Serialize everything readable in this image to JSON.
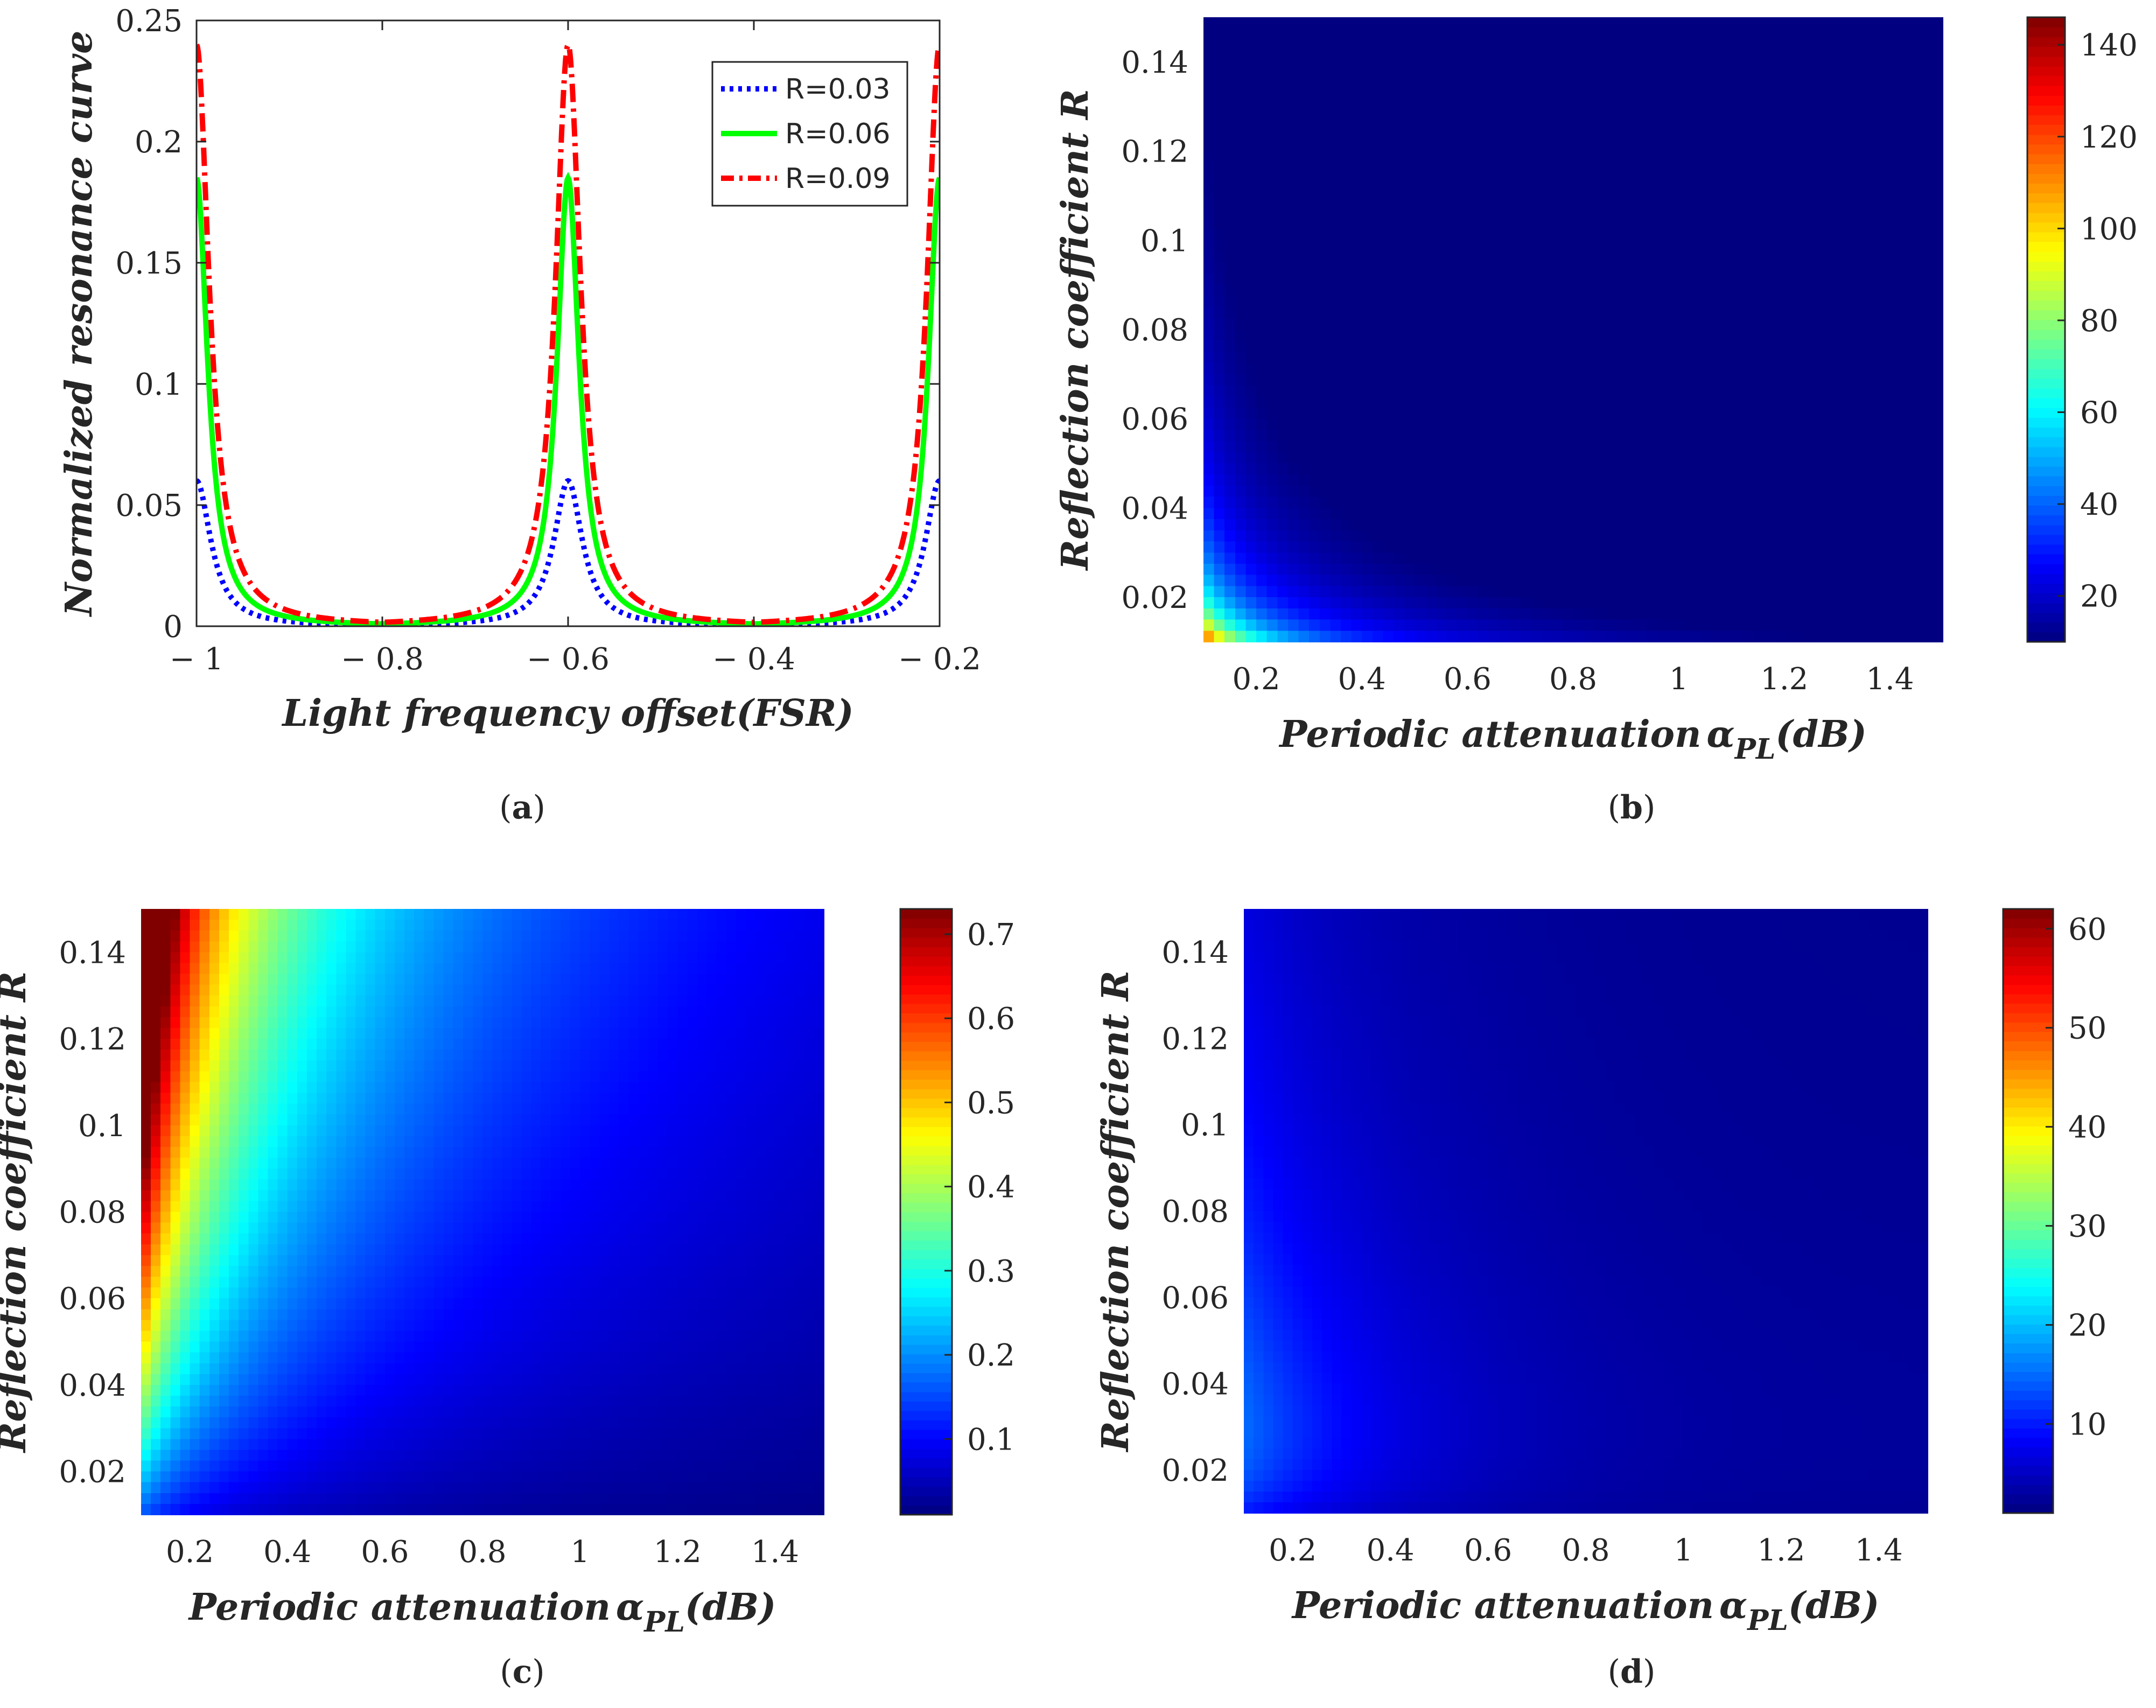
{
  "figure_kind": "four-panel scientific figure",
  "chart_data": [
    {
      "id": "a",
      "type": "line",
      "panel_label": "a",
      "xlabel": "Light frequency offset(FSR)",
      "ylabel": "Normalized resonance curve",
      "xlim": [
        -1,
        -0.2
      ],
      "ylim": [
        0,
        0.25
      ],
      "xticks": [
        -1,
        -0.8,
        -0.6,
        -0.4,
        -0.2
      ],
      "xtick_labels": [
        "− 1",
        "− 0.8",
        "− 0.6",
        "− 0.4",
        "− 0.2"
      ],
      "yticks": [
        0,
        0.05,
        0.1,
        0.15,
        0.2,
        0.25
      ],
      "ytick_labels": [
        "0",
        "0.05",
        "0.1",
        "0.15",
        "0.2",
        "0.25"
      ],
      "legend_position": "top-right",
      "resonance_centers": [
        -1,
        -0.6,
        -0.2
      ],
      "series": [
        {
          "name": "R=0.03",
          "color": "#0000ff",
          "style": "dotted",
          "peak": 0.06,
          "base": 0.0008
        },
        {
          "name": "R=0.06",
          "color": "#00ff00",
          "style": "solid",
          "peak": 0.185,
          "base": 0.0015
        },
        {
          "name": "R=0.09",
          "color": "#ff0000",
          "style": "dashdot",
          "peak": 0.24,
          "base": 0.0025
        }
      ]
    },
    {
      "id": "b",
      "type": "heatmap",
      "panel_label": "b",
      "xlabel": "Periodic attenuation",
      "xlabel_symbol": "α",
      "xlabel_subscript": "PL",
      "xlabel_unit": "(dB)",
      "ylabel": "Reflection coefficient R",
      "xlim": [
        0.1,
        1.5
      ],
      "ylim": [
        0.01,
        0.15
      ],
      "xticks": [
        0.2,
        0.4,
        0.6,
        0.8,
        1,
        1.2,
        1.4
      ],
      "xtick_labels": [
        "0.2",
        "0.4",
        "0.6",
        "0.8",
        "1",
        "1.2",
        "1.4"
      ],
      "yticks": [
        0.02,
        0.04,
        0.06,
        0.08,
        0.1,
        0.12,
        0.14
      ],
      "ytick_labels": [
        "0.02",
        "0.04",
        "0.06",
        "0.08",
        "0.1",
        "0.12",
        "0.14"
      ],
      "colorbar_range": [
        10,
        146
      ],
      "colorbar_ticks": [
        20,
        40,
        60,
        80,
        100,
        120,
        140
      ],
      "colorbar_tick_labels": [
        "20",
        "40",
        "60",
        "80",
        "100",
        "120",
        "140"
      ],
      "colormap": "jet",
      "field": "inverse-product",
      "hot_corner": "bottom-left"
    },
    {
      "id": "c",
      "type": "heatmap",
      "panel_label": "c",
      "xlabel": "Periodic attenuation",
      "xlabel_symbol": "α",
      "xlabel_subscript": "PL",
      "xlabel_unit": "(dB)",
      "ylabel": "Reflection coefficient R",
      "xlim": [
        0.1,
        1.5
      ],
      "ylim": [
        0.01,
        0.15
      ],
      "xticks": [
        0.2,
        0.4,
        0.6,
        0.8,
        1,
        1.2,
        1.4
      ],
      "xtick_labels": [
        "0.2",
        "0.4",
        "0.6",
        "0.8",
        "1",
        "1.2",
        "1.4"
      ],
      "yticks": [
        0.02,
        0.04,
        0.06,
        0.08,
        0.1,
        0.12,
        0.14
      ],
      "ytick_labels": [
        "0.02",
        "0.04",
        "0.06",
        "0.08",
        "0.1",
        "0.12",
        "0.14"
      ],
      "colorbar_range": [
        0.01,
        0.73
      ],
      "colorbar_ticks": [
        0.1,
        0.2,
        0.3,
        0.4,
        0.5,
        0.6,
        0.7
      ],
      "colorbar_tick_labels": [
        "0.1",
        "0.2",
        "0.3",
        "0.4",
        "0.5",
        "0.6",
        "0.7"
      ],
      "colormap": "jet",
      "field": "ratio",
      "hot_corner": "top-left"
    },
    {
      "id": "d",
      "type": "heatmap",
      "panel_label": "d",
      "xlabel": "Periodic attenuation",
      "xlabel_symbol": "α",
      "xlabel_subscript": "PL",
      "xlabel_unit": "(dB)",
      "ylabel": "Reflection coefficient R",
      "xlim": [
        0.1,
        1.5
      ],
      "ylim": [
        0.01,
        0.15
      ],
      "xticks": [
        0.2,
        0.4,
        0.6,
        0.8,
        1,
        1.2,
        1.4
      ],
      "xtick_labels": [
        "0.2",
        "0.4",
        "0.6",
        "0.8",
        "1",
        "1.2",
        "1.4"
      ],
      "yticks": [
        0.02,
        0.04,
        0.06,
        0.08,
        0.1,
        0.12,
        0.14
      ],
      "ytick_labels": [
        "0.02",
        "0.04",
        "0.06",
        "0.08",
        "0.1",
        "0.12",
        "0.14"
      ],
      "colorbar_range": [
        1,
        62
      ],
      "colorbar_ticks": [
        10,
        20,
        30,
        40,
        50,
        60
      ],
      "colorbar_tick_labels": [
        "10",
        "20",
        "30",
        "40",
        "50",
        "60"
      ],
      "colormap": "jet",
      "field": "peaked",
      "hot_corner": "left, near R=0.02"
    }
  ]
}
